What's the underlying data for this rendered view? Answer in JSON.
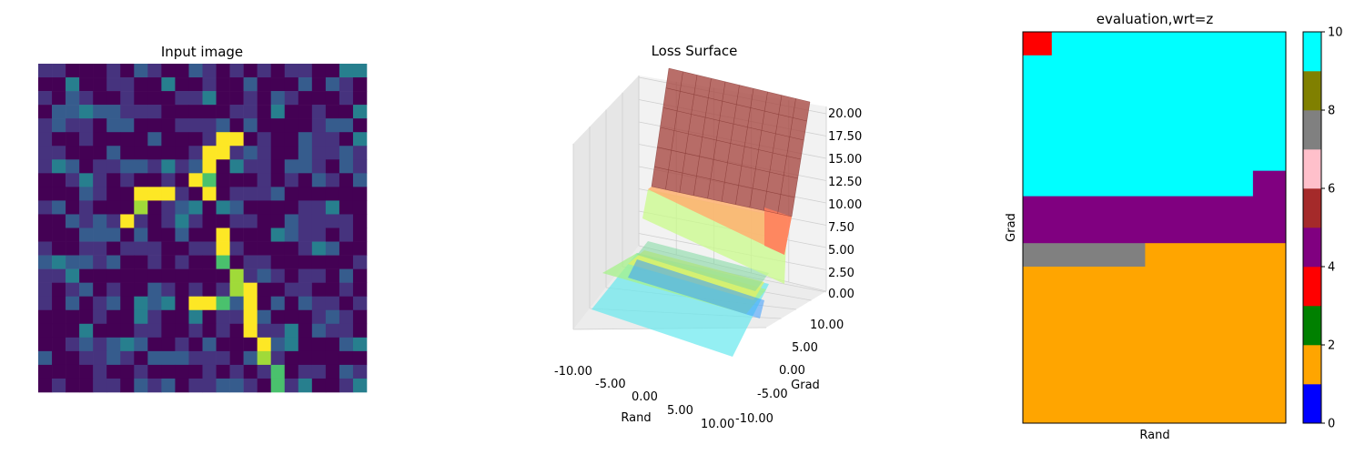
{
  "chart_data": [
    {
      "type": "heatmap",
      "title": "Input image",
      "colormap": "viridis",
      "rows": 24,
      "cols": 24,
      "axes_visible": false,
      "bright_path": [
        [
          5,
          13
        ],
        [
          5,
          14
        ],
        [
          6,
          12
        ],
        [
          6,
          13
        ],
        [
          7,
          12
        ],
        [
          8,
          11
        ],
        [
          8,
          12
        ],
        [
          9,
          7
        ],
        [
          9,
          8
        ],
        [
          9,
          9
        ],
        [
          9,
          12
        ],
        [
          10,
          7
        ],
        [
          11,
          6
        ],
        [
          12,
          13
        ],
        [
          13,
          13
        ],
        [
          14,
          13
        ],
        [
          15,
          14
        ],
        [
          16,
          14
        ],
        [
          16,
          15
        ],
        [
          17,
          11
        ],
        [
          17,
          12
        ],
        [
          17,
          13
        ],
        [
          17,
          15
        ],
        [
          18,
          15
        ],
        [
          19,
          15
        ],
        [
          20,
          16
        ],
        [
          21,
          16
        ],
        [
          22,
          17
        ],
        [
          23,
          17
        ]
      ]
    },
    {
      "type": "surface",
      "title": "Loss Surface",
      "xlabel": "Rand",
      "ylabel": "Grad",
      "x_ticks": [
        "-10.00",
        "-5.00",
        "0.00",
        "5.00",
        "10.00"
      ],
      "y_ticks": [
        "-10.00",
        "-5.00",
        "0.00",
        "5.00",
        "10.00"
      ],
      "z_ticks": [
        "0.00",
        "2.50",
        "5.00",
        "7.50",
        "10.00",
        "12.50",
        "15.00",
        "17.50",
        "20.00"
      ],
      "xlim": [
        -10,
        10
      ],
      "ylim": [
        -10,
        10
      ],
      "zlim": [
        0,
        20
      ],
      "grid": true
    },
    {
      "type": "heatmap",
      "title": "evaluation,wrt=z",
      "xlabel": "Rand",
      "ylabel": "Grad",
      "colorbar": {
        "ticks": [
          "0",
          "2",
          "4",
          "6",
          "8",
          "10"
        ],
        "range": [
          0,
          10
        ],
        "colors": [
          "#0000ff",
          "#ffa500",
          "#008000",
          "#ff0000",
          "#800080",
          "#a52a2a",
          "#ffc0cb",
          "#808080",
          "#808000",
          "#00ffff"
        ]
      },
      "regions": [
        {
          "label": "red",
          "value": 3.5,
          "color": "#ff0000",
          "x_frac": [
            0.0,
            0.11
          ],
          "y_frac": [
            0.0,
            0.06
          ]
        },
        {
          "label": "cyan",
          "value": 9.5,
          "color": "#00ffff",
          "x_frac": [
            0.11,
            1.0
          ],
          "y_frac": [
            0.0,
            0.06
          ]
        },
        {
          "label": "cyan",
          "value": 9.5,
          "color": "#00ffff",
          "x_frac": [
            0.0,
            1.0
          ],
          "y_frac": [
            0.06,
            0.355
          ]
        },
        {
          "label": "cyan",
          "value": 9.5,
          "color": "#00ffff",
          "x_frac": [
            0.0,
            0.875
          ],
          "y_frac": [
            0.355,
            0.42
          ]
        },
        {
          "label": "purple",
          "value": 4.5,
          "color": "#800080",
          "x_frac": [
            0.875,
            1.0
          ],
          "y_frac": [
            0.355,
            0.42
          ]
        },
        {
          "label": "purple",
          "value": 4.5,
          "color": "#800080",
          "x_frac": [
            0.0,
            1.0
          ],
          "y_frac": [
            0.42,
            0.54
          ]
        },
        {
          "label": "gray",
          "value": 7.5,
          "color": "#808080",
          "x_frac": [
            0.0,
            0.465
          ],
          "y_frac": [
            0.54,
            0.6
          ]
        },
        {
          "label": "orange",
          "value": 1.5,
          "color": "#ffa500",
          "x_frac": [
            0.465,
            1.0
          ],
          "y_frac": [
            0.54,
            0.6
          ]
        },
        {
          "label": "orange",
          "value": 1.5,
          "color": "#ffa500",
          "x_frac": [
            0.0,
            1.0
          ],
          "y_frac": [
            0.6,
            1.0
          ]
        }
      ]
    }
  ]
}
